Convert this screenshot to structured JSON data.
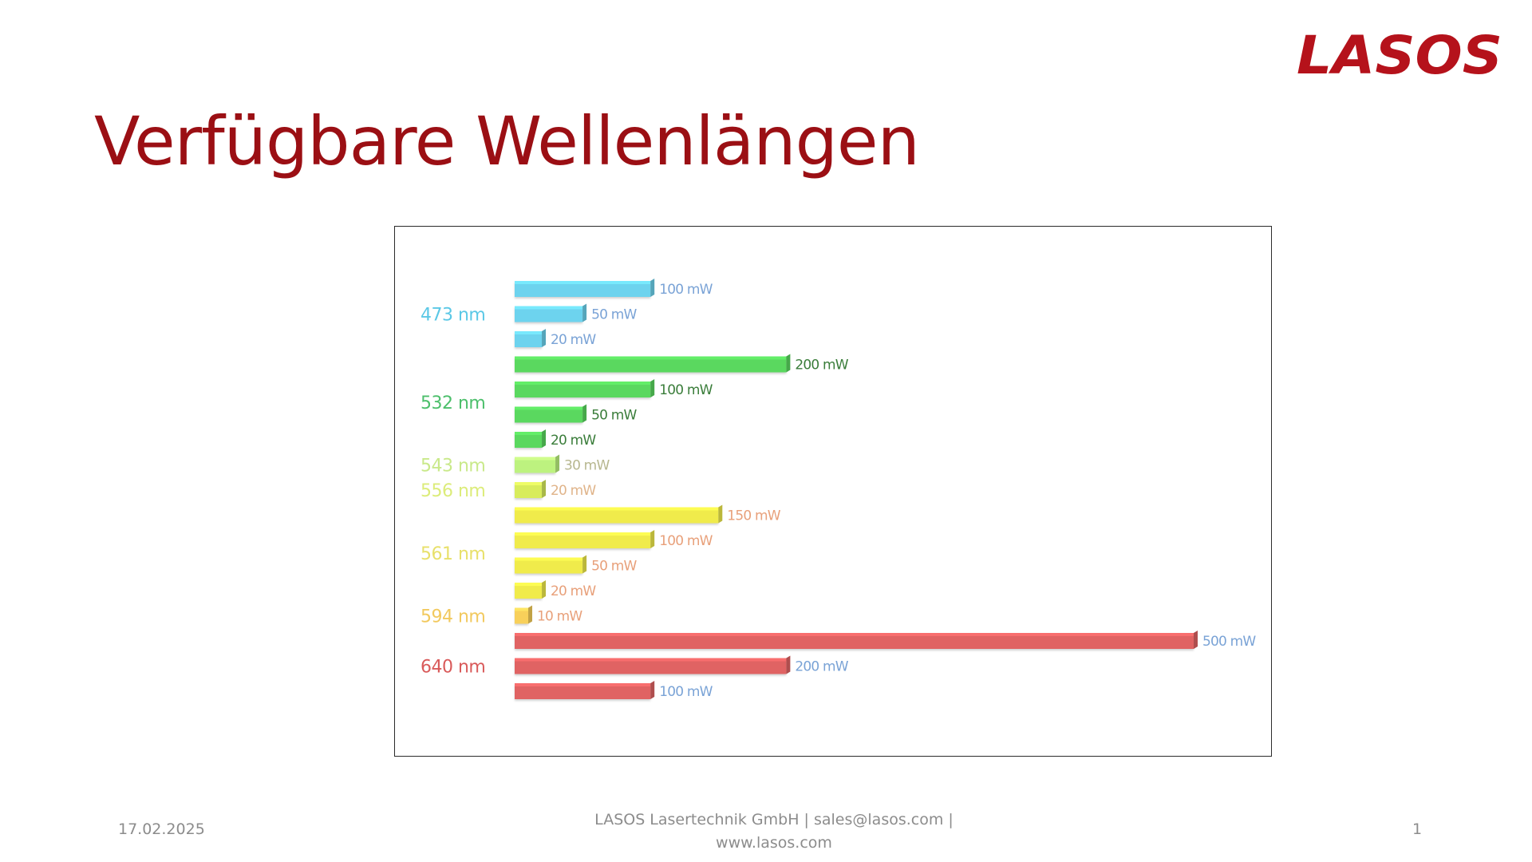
{
  "brand": {
    "logo_text": "LASOS",
    "color": "#b5121b"
  },
  "slide": {
    "title": "Verfügbare Wellenlängen",
    "title_color": "#9b0f14"
  },
  "footer": {
    "date": "17.02.2025",
    "company_line1": "LASOS Lasertechnik GmbH | sales@lasos.com |",
    "company_line2": "www.lasos.com",
    "page_number": "1"
  },
  "chart_data": {
    "type": "bar",
    "orientation": "horizontal",
    "title": "",
    "xlabel": "",
    "ylabel": "",
    "value_unit": "mW",
    "groups": [
      {
        "label": "473 nm",
        "color": "#6dd3ee",
        "label_color": "#5bc8e6",
        "value_label_color": "#7aa3d6",
        "values": [
          100,
          50,
          20
        ],
        "value_labels": [
          "100 mW",
          "50 mW",
          "20 mW"
        ]
      },
      {
        "label": "532 nm",
        "color": "#5ad85f",
        "label_color": "#4cbf6b",
        "value_label_color": "#3a7d3a",
        "values": [
          200,
          100,
          50,
          20
        ],
        "value_labels": [
          "200 mW",
          "100 mW",
          "50 mW",
          "20 mW"
        ]
      },
      {
        "label": "543 nm",
        "color": "#bdf27f",
        "label_color": "#c9e98a",
        "value_label_color": "#b7b78f",
        "values": [
          30
        ],
        "value_labels": [
          "30 mW"
        ]
      },
      {
        "label": "556 nm",
        "color": "#d8ec5c",
        "label_color": "#dcec7a",
        "value_label_color": "#e0b48a",
        "values": [
          20
        ],
        "value_labels": [
          "20 mW"
        ]
      },
      {
        "label": "561 nm",
        "color": "#f0eb4c",
        "label_color": "#e8e06a",
        "value_label_color": "#e8a07a",
        "values": [
          150,
          100,
          50,
          20
        ],
        "value_labels": [
          "150 mW",
          "100 mW",
          "50 mW",
          "20 mW"
        ]
      },
      {
        "label": "594 nm",
        "color": "#f8d05a",
        "label_color": "#f2c95e",
        "value_label_color": "#e8a07a",
        "values": [
          10
        ],
        "value_labels": [
          "10 mW"
        ]
      },
      {
        "label": "640 nm",
        "color": "#e06464",
        "label_color": "#d95a5a",
        "value_label_color": "#7aa3d6",
        "values": [
          500,
          200,
          100
        ],
        "value_labels": [
          "500 mW",
          "200 mW",
          "100 mW"
        ]
      }
    ],
    "grid": false,
    "legend": "none"
  }
}
